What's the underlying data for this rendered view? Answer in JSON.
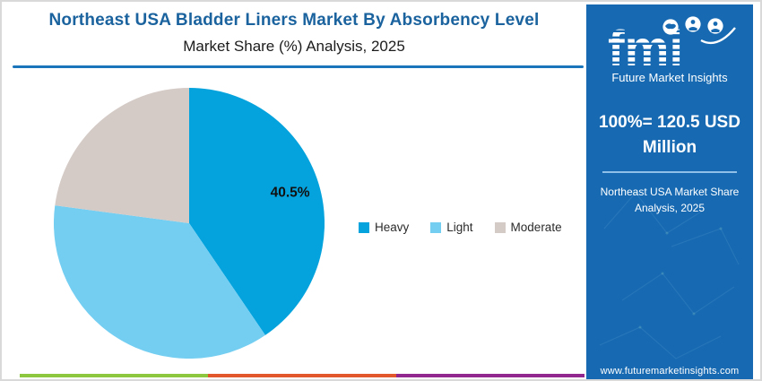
{
  "header": {
    "title": "Northeast USA Bladder Liners Market By Absorbency Level",
    "subtitle": "Market Share (%) Analysis, 2025"
  },
  "chart_data": {
    "type": "pie",
    "title": "Northeast USA Bladder Liners Market By Absorbency Level",
    "subtitle": "Market Share (%) Analysis, 2025",
    "labels": [
      "Heavy",
      "Light",
      "Moderate"
    ],
    "values": [
      40.5,
      36.6,
      22.9
    ],
    "colors": [
      "#04A3DD",
      "#74CEF2",
      "#D4CAC6"
    ],
    "data_labels": [
      "40.5%",
      "",
      ""
    ],
    "start_angle_deg": 0,
    "direction": "clockwise",
    "legend_position": "right",
    "label_color": "#111111"
  },
  "sidebar": {
    "brand": "fmi",
    "brand_tagline": "Future Market Insights",
    "headline": "100%= 120.5 USD Million",
    "caption": "Northeast USA Market Share Analysis, 2025",
    "website": "www.futuremarketinsights.com",
    "background": "#176AB2"
  },
  "footer_strip_colors": [
    "#8DC63F",
    "#E2572B",
    "#92278F"
  ],
  "accent_colors": {
    "title": "#1B639E",
    "header_rule": "#1B75BB",
    "sidebar_rule": "#8FC0E8"
  }
}
